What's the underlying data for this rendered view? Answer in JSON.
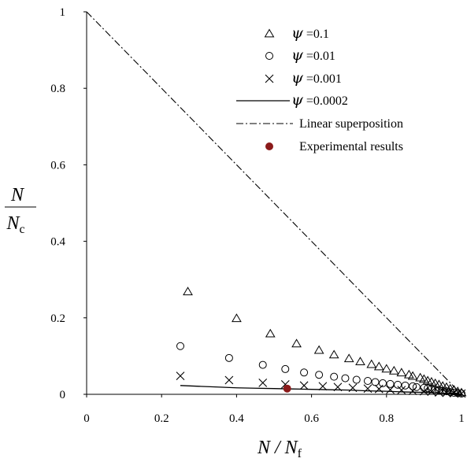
{
  "chart_data": {
    "type": "scatter",
    "xlabel": "N / N_f",
    "ylabel": "N / N_c",
    "xlim": [
      0,
      1
    ],
    "ylim": [
      0,
      1
    ],
    "x_ticks": [
      "0",
      "0.2",
      "0.4",
      "0.6",
      "0.8",
      "1"
    ],
    "y_ticks": [
      "0",
      "0.2",
      "0.4",
      "0.6",
      "0.8",
      "1"
    ],
    "legend_position": "top-right",
    "series": [
      {
        "name": "ψ =0.1",
        "marker": "triangle",
        "style": "markers",
        "x": [
          0.27,
          0.4,
          0.49,
          0.56,
          0.62,
          0.66,
          0.7,
          0.73,
          0.76,
          0.78,
          0.8,
          0.82,
          0.84,
          0.86,
          0.87,
          0.89,
          0.9,
          0.91,
          0.92,
          0.93,
          0.94,
          0.95,
          0.96,
          0.97,
          0.98,
          0.99,
          1.0
        ],
        "y": [
          0.268,
          0.198,
          0.158,
          0.132,
          0.115,
          0.103,
          0.093,
          0.085,
          0.078,
          0.072,
          0.066,
          0.061,
          0.056,
          0.051,
          0.047,
          0.043,
          0.039,
          0.035,
          0.032,
          0.028,
          0.025,
          0.021,
          0.018,
          0.014,
          0.011,
          0.007,
          0.004
        ]
      },
      {
        "name": "ψ =0.01",
        "marker": "circle",
        "style": "markers",
        "x": [
          0.25,
          0.38,
          0.47,
          0.53,
          0.58,
          0.62,
          0.66,
          0.69,
          0.72,
          0.75,
          0.77,
          0.79,
          0.81,
          0.83,
          0.85,
          0.87,
          0.88,
          0.9,
          0.91,
          0.92,
          0.93,
          0.94,
          0.95,
          0.96,
          0.97,
          0.98,
          0.99,
          1.0
        ],
        "y": [
          0.126,
          0.095,
          0.077,
          0.066,
          0.057,
          0.051,
          0.046,
          0.042,
          0.038,
          0.035,
          0.032,
          0.029,
          0.027,
          0.025,
          0.023,
          0.021,
          0.019,
          0.017,
          0.016,
          0.014,
          0.012,
          0.011,
          0.009,
          0.008,
          0.006,
          0.004,
          0.003,
          0.002
        ]
      },
      {
        "name": "ψ =0.001",
        "marker": "cross",
        "style": "markers",
        "x": [
          0.25,
          0.38,
          0.47,
          0.53,
          0.58,
          0.63,
          0.67,
          0.71,
          0.75,
          0.78,
          0.81,
          0.84,
          0.87,
          0.9,
          0.92,
          0.94,
          0.96,
          0.98,
          1.0
        ],
        "y": [
          0.048,
          0.037,
          0.03,
          0.026,
          0.023,
          0.021,
          0.019,
          0.017,
          0.015,
          0.014,
          0.012,
          0.011,
          0.009,
          0.008,
          0.007,
          0.005,
          0.004,
          0.003,
          0.002
        ]
      },
      {
        "name": "ψ =0.0002",
        "style": "solid-line",
        "x": [
          0.25,
          0.3,
          0.35,
          0.4,
          0.45,
          0.5,
          0.55,
          0.6,
          0.65,
          0.7,
          0.75,
          0.8,
          0.85,
          0.9,
          0.95,
          1.0
        ],
        "y": [
          0.023,
          0.021,
          0.019,
          0.017,
          0.016,
          0.015,
          0.014,
          0.013,
          0.012,
          0.011,
          0.009,
          0.008,
          0.006,
          0.005,
          0.003,
          0.001
        ]
      },
      {
        "name": "Linear superposition",
        "style": "dash-dot-line",
        "x": [
          0,
          1
        ],
        "y": [
          1,
          0
        ]
      },
      {
        "name": "Experimental results",
        "marker": "filled-circle",
        "style": "markers",
        "color": "#8b1a1a",
        "x": [
          0.535
        ],
        "y": [
          0.015
        ]
      }
    ]
  }
}
